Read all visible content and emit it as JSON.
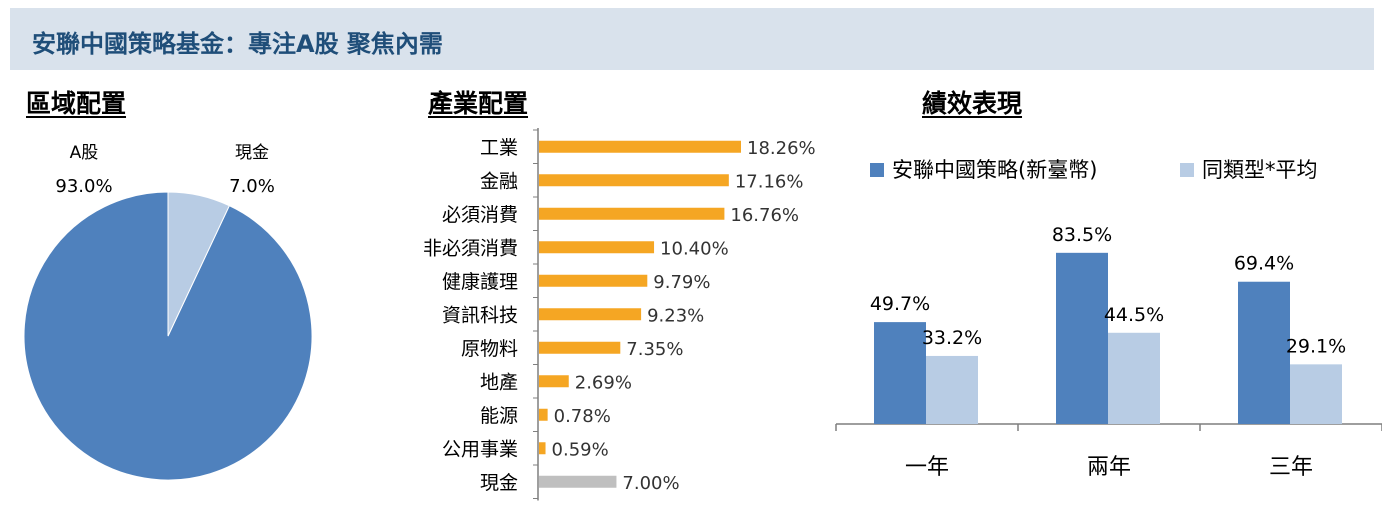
{
  "header": {
    "title": "安聯中國策略基金：專注A股 聚焦內需"
  },
  "colors": {
    "blue": "#4f81bd",
    "light_blue": "#b8cce4",
    "orange": "#f5a623",
    "gray": "#bfbfbf",
    "header_bg": "#d9e2ec",
    "header_text": "#1f4e79"
  },
  "chart_data": [
    {
      "type": "pie",
      "title": "區域配置",
      "slices": [
        {
          "label": "A股",
          "value": 93.0,
          "value_label": "93.0%",
          "color": "#4f81bd"
        },
        {
          "label": "現金",
          "value": 7.0,
          "value_label": "7.0%",
          "color": "#b8cce4"
        }
      ]
    },
    {
      "type": "bar",
      "orientation": "horizontal",
      "title": "產業配置",
      "xlim": [
        0,
        20
      ],
      "categories": [
        "工業",
        "金融",
        "必須消費",
        "非必須消費",
        "健康護理",
        "資訊科技",
        "原物料",
        "地產",
        "能源",
        "公用事業",
        "現金"
      ],
      "values": [
        18.26,
        17.16,
        16.76,
        10.4,
        9.79,
        9.23,
        7.35,
        2.69,
        0.78,
        0.59,
        7.0
      ],
      "value_labels": [
        "18.26%",
        "17.16%",
        "16.76%",
        "10.40%",
        "9.79%",
        "9.23%",
        "7.35%",
        "2.69%",
        "0.78%",
        "0.59%",
        "7.00%"
      ],
      "colors": [
        "#f5a623",
        "#f5a623",
        "#f5a623",
        "#f5a623",
        "#f5a623",
        "#f5a623",
        "#f5a623",
        "#f5a623",
        "#f5a623",
        "#f5a623",
        "#bfbfbf"
      ]
    },
    {
      "type": "bar",
      "title": "績效表現",
      "ylim": [
        0,
        100
      ],
      "categories": [
        "一年",
        "兩年",
        "三年"
      ],
      "legend_position": "top",
      "series": [
        {
          "name": "安聯中國策略(新臺幣)",
          "values": [
            49.7,
            83.5,
            69.4
          ],
          "value_labels": [
            "49.7%",
            "83.5%",
            "69.4%"
          ],
          "color": "#4f81bd"
        },
        {
          "name": "同類型*平均",
          "values": [
            33.2,
            44.5,
            29.1
          ],
          "value_labels": [
            "33.2%",
            "44.5%",
            "29.1%"
          ],
          "color": "#b8cce4"
        }
      ]
    }
  ]
}
